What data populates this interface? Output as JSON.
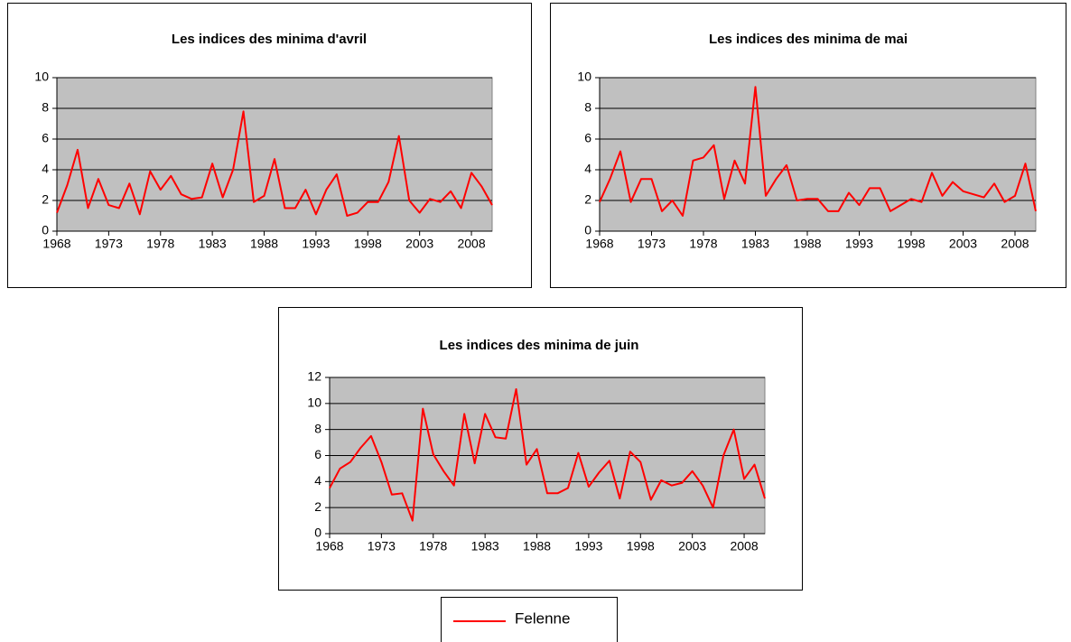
{
  "chart_data": [
    {
      "type": "line",
      "title": "Les indices des minima d'avril",
      "x": [
        1968,
        1969,
        1970,
        1971,
        1972,
        1973,
        1974,
        1975,
        1976,
        1977,
        1978,
        1979,
        1980,
        1981,
        1982,
        1983,
        1984,
        1985,
        1986,
        1987,
        1988,
        1989,
        1990,
        1991,
        1992,
        1993,
        1994,
        1995,
        1996,
        1997,
        1998,
        1999,
        2000,
        2001,
        2002,
        2003,
        2004,
        2005,
        2006,
        2007,
        2008,
        2009,
        2010
      ],
      "series": [
        {
          "color": "#ff0000",
          "values": [
            1.2,
            3.0,
            5.3,
            1.5,
            3.4,
            1.7,
            1.5,
            3.1,
            1.1,
            3.9,
            2.7,
            3.6,
            2.4,
            2.1,
            2.2,
            4.4,
            2.2,
            4.0,
            7.8,
            1.9,
            2.3,
            4.7,
            1.5,
            1.5,
            2.7,
            1.1,
            2.7,
            3.7,
            1.0,
            1.2,
            1.9,
            1.9,
            3.2,
            6.2,
            2.0,
            1.2,
            2.1,
            1.9,
            2.6,
            1.5,
            3.8,
            2.9,
            1.7
          ]
        }
      ],
      "xlim": [
        1968,
        2010
      ],
      "xticks": [
        1968,
        1973,
        1978,
        1983,
        1988,
        1993,
        1998,
        2003,
        2008
      ],
      "ylim": [
        0,
        10
      ],
      "yticks": [
        0,
        2,
        4,
        6,
        8,
        10
      ],
      "grid": true
    },
    {
      "type": "line",
      "title": "Les indices des minima de mai",
      "x": [
        1968,
        1969,
        1970,
        1971,
        1972,
        1973,
        1974,
        1975,
        1976,
        1977,
        1978,
        1979,
        1980,
        1981,
        1982,
        1983,
        1984,
        1985,
        1986,
        1987,
        1988,
        1989,
        1990,
        1991,
        1992,
        1993,
        1994,
        1995,
        1996,
        1997,
        1998,
        1999,
        2000,
        2001,
        2002,
        2003,
        2004,
        2005,
        2006,
        2007,
        2008,
        2009,
        2010
      ],
      "series": [
        {
          "color": "#ff0000",
          "values": [
            1.9,
            3.4,
            5.2,
            1.9,
            3.4,
            3.4,
            1.3,
            2.0,
            1.0,
            4.6,
            4.8,
            5.6,
            2.1,
            4.6,
            3.1,
            9.4,
            2.3,
            3.4,
            4.3,
            2.0,
            2.1,
            2.1,
            1.3,
            1.3,
            2.5,
            1.7,
            2.8,
            2.8,
            1.3,
            1.7,
            2.1,
            1.9,
            3.8,
            2.3,
            3.2,
            2.6,
            2.4,
            2.2,
            3.1,
            1.9,
            2.3,
            4.4,
            1.3
          ]
        }
      ],
      "xlim": [
        1968,
        2010
      ],
      "xticks": [
        1968,
        1973,
        1978,
        1983,
        1988,
        1993,
        1998,
        2003,
        2008
      ],
      "ylim": [
        0,
        10
      ],
      "yticks": [
        0,
        2,
        4,
        6,
        8,
        10
      ],
      "grid": true
    },
    {
      "type": "line",
      "title": "Les indices des minima de juin",
      "x": [
        1968,
        1969,
        1970,
        1971,
        1972,
        1973,
        1974,
        1975,
        1976,
        1977,
        1978,
        1979,
        1980,
        1981,
        1982,
        1983,
        1984,
        1985,
        1986,
        1987,
        1988,
        1989,
        1990,
        1991,
        1992,
        1993,
        1994,
        1995,
        1996,
        1997,
        1998,
        1999,
        2000,
        2001,
        2002,
        2003,
        2004,
        2005,
        2006,
        2007,
        2008,
        2009,
        2010
      ],
      "series": [
        {
          "color": "#ff0000",
          "values": [
            3.5,
            5.0,
            5.5,
            6.6,
            7.5,
            5.5,
            3.0,
            3.1,
            1.0,
            9.6,
            6.1,
            4.8,
            3.7,
            9.2,
            5.4,
            9.2,
            7.4,
            7.3,
            11.1,
            5.3,
            6.5,
            3.1,
            3.1,
            3.5,
            6.2,
            3.6,
            4.7,
            5.6,
            2.7,
            6.3,
            5.5,
            2.6,
            4.1,
            3.7,
            3.9,
            4.8,
            3.7,
            2.0,
            6.0,
            8.0,
            4.2,
            5.3,
            2.7
          ]
        }
      ],
      "xlim": [
        1968,
        2010
      ],
      "xticks": [
        1968,
        1973,
        1978,
        1983,
        1988,
        1993,
        1998,
        2003,
        2008
      ],
      "ylim": [
        0,
        12
      ],
      "yticks": [
        0,
        2,
        4,
        6,
        8,
        10,
        12
      ],
      "grid": true
    }
  ],
  "legend": {
    "label": "Felenne",
    "color": "#ff0000"
  }
}
